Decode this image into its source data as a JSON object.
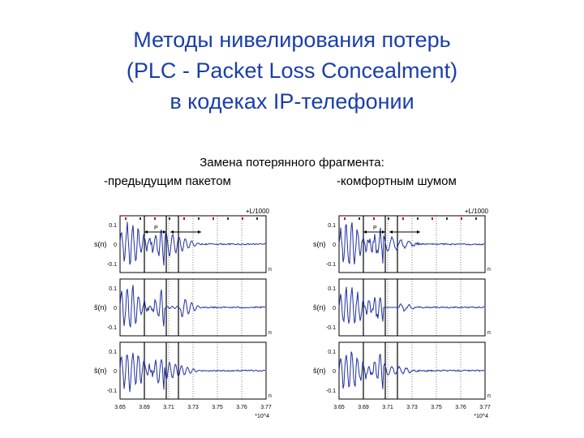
{
  "slide": {
    "title_lines": [
      "Методы нивелирования потерь",
      "(PLC - Packet Loss Concealment)",
      "в кодеках IP-телефонии"
    ],
    "subtitle": "Замена потерянного фрагмента:",
    "option_left": "-предыдущим пакетом",
    "option_right": "-комфортным шумом"
  },
  "figures": [
    {
      "method": "previous-packet",
      "header": "+L/1000",
      "rows": [
        {
          "label": "s(n)",
          "ticks": [
            "0.1",
            "0",
            "-0.1"
          ]
        },
        {
          "label": "ŝ(n)",
          "ticks": [
            "0.1",
            "0",
            "-0.1"
          ]
        },
        {
          "label": "ŝ(n)",
          "ticks": [
            "0.1",
            "0",
            "-0.1"
          ]
        }
      ],
      "xticks": [
        "3.65",
        "3.69",
        "3.71",
        "3.73",
        "3.75",
        "3.76",
        "3.77"
      ],
      "xunit": "*10^4",
      "axis_letter": "n",
      "marker": "P"
    },
    {
      "method": "comfort-noise",
      "header": "+L/1000",
      "rows": [
        {
          "label": "s(n)",
          "ticks": [
            "0.1",
            "0",
            "-0.1"
          ]
        },
        {
          "label": "ŝ(n)",
          "ticks": [
            "0.1",
            "0",
            "-0.1"
          ]
        },
        {
          "label": "ŝ(n)",
          "ticks": [
            "0.1",
            "0",
            "-0.1"
          ]
        }
      ],
      "xticks": [
        "3.65",
        "3.69",
        "3.71",
        "3.73",
        "3.75",
        "3.76",
        "3.77"
      ],
      "xunit": "*10^4",
      "axis_letter": "n",
      "marker": "P"
    }
  ],
  "colors": {
    "title": "#1a3fa8",
    "waveform": "#1f2f9e",
    "frame": "#000000",
    "markers": "#cc0000"
  }
}
